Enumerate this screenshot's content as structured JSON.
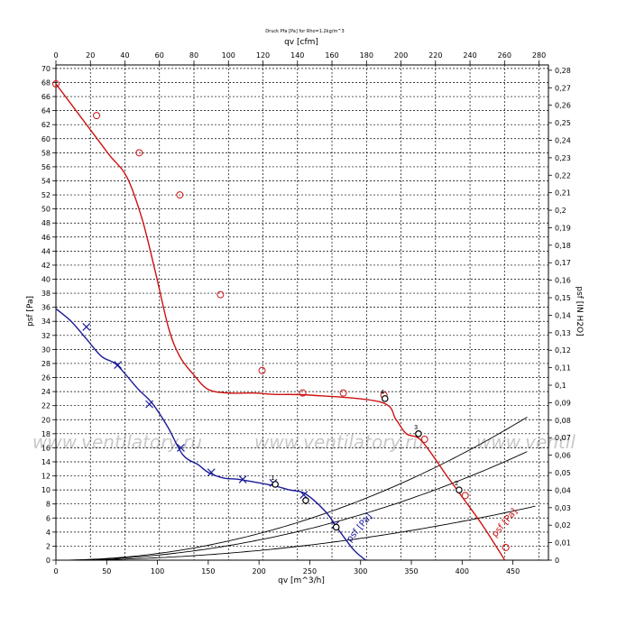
{
  "header": {
    "title": "Druck Pfa [Pa] for Rho=1.2kg/m^3"
  },
  "watermark": [
    "www.ventilatory.ru",
    "www.ventilatory.ru",
    "www.ventil"
  ],
  "chart_data": {
    "type": "line",
    "xlabel_bottom": "qv [m^3/h]",
    "xlabel_top": "qv [cfm]",
    "ylabel_left": "psf [Pa]",
    "ylabel_right": "psf [IN H2O]",
    "xlim": [
      0,
      485
    ],
    "ylim": [
      0,
      70.5
    ],
    "x_top_ticks": [
      "0",
      "20",
      "40",
      "60",
      "80",
      "100",
      "120",
      "140",
      "160",
      "180",
      "200",
      "220",
      "240",
      "260",
      "280"
    ],
    "x_bottom_ticks": [
      "0",
      "50",
      "100",
      "150",
      "200",
      "250",
      "300",
      "350",
      "400",
      "450"
    ],
    "y_left_ticks": [
      "0",
      "2",
      "4",
      "6",
      "8",
      "10",
      "12",
      "14",
      "16",
      "18",
      "20",
      "22",
      "24",
      "26",
      "28",
      "30",
      "32",
      "34",
      "36",
      "38",
      "40",
      "42",
      "44",
      "46",
      "48",
      "50",
      "52",
      "54",
      "56",
      "58",
      "60",
      "62",
      "64",
      "66",
      "68",
      "70"
    ],
    "y_right_ticks": [
      "0",
      "0,01",
      "0,02",
      "0,03",
      "0,04",
      "0,05",
      "0,06",
      "0,07",
      "0,08",
      "0,09",
      "0,1",
      "0,11",
      "0,12",
      "0,13",
      "0,14",
      "0,15",
      "0,16",
      "0,17",
      "0,18",
      "0,19",
      "0,2",
      "0,21",
      "0,22",
      "0,23",
      "0,24",
      "0,25",
      "0,26",
      "0,27",
      "0,28"
    ],
    "grid": true,
    "series": [
      {
        "name": "psf [Pa]",
        "color": "#cc1111",
        "marker": "circle",
        "points": [
          [
            0,
            67.8
          ],
          [
            25,
            63
          ],
          [
            52,
            57.8
          ],
          [
            70,
            54.5
          ],
          [
            85,
            48.5
          ],
          [
            98,
            41
          ],
          [
            111,
            33
          ],
          [
            122,
            29
          ],
          [
            135,
            26.5
          ],
          [
            150,
            24.3
          ],
          [
            170,
            23.8
          ],
          [
            195,
            23.8
          ],
          [
            215,
            23.6
          ],
          [
            250,
            23.5
          ],
          [
            320,
            22.5
          ],
          [
            335,
            20
          ],
          [
            345,
            18
          ],
          [
            360,
            17
          ],
          [
            385,
            12
          ],
          [
            400,
            9
          ],
          [
            420,
            5
          ],
          [
            442,
            0
          ]
        ],
        "markers": [
          [
            0,
            67.8
          ],
          [
            40,
            63.3
          ],
          [
            82,
            58
          ],
          [
            122,
            52
          ],
          [
            162,
            37.8
          ],
          [
            203,
            27
          ],
          [
            243,
            23.8
          ],
          [
            283,
            23.8
          ],
          [
            323,
            23.5
          ],
          [
            363,
            17.2
          ],
          [
            403,
            9.2
          ],
          [
            443,
            1.8
          ]
        ],
        "label_pos": [
          433,
          3.2
        ]
      },
      {
        "name": "psf [Pa]",
        "color": "#1a1a99",
        "marker": "x",
        "points": [
          [
            0,
            35.8
          ],
          [
            15,
            34
          ],
          [
            30,
            31.5
          ],
          [
            45,
            29
          ],
          [
            60,
            27.8
          ],
          [
            80,
            24.5
          ],
          [
            95,
            22.3
          ],
          [
            110,
            19
          ],
          [
            125,
            15
          ],
          [
            140,
            13.6
          ],
          [
            150,
            12.5
          ],
          [
            165,
            11.7
          ],
          [
            180,
            11.5
          ],
          [
            200,
            11
          ],
          [
            215,
            10.6
          ],
          [
            230,
            10
          ],
          [
            245,
            9.5
          ],
          [
            265,
            7
          ],
          [
            280,
            4
          ],
          [
            293,
            1.5
          ],
          [
            305,
            0
          ]
        ],
        "markers": [
          [
            30,
            33.2
          ],
          [
            61,
            27.8
          ],
          [
            92,
            22.2
          ],
          [
            123,
            16
          ],
          [
            153,
            12.5
          ],
          [
            184,
            11.5
          ],
          [
            214,
            11
          ],
          [
            244,
            9.3
          ],
          [
            275,
            5
          ]
        ],
        "label_pos": [
          290,
          2.5
        ]
      }
    ],
    "system_curves": [
      {
        "k": 9.46e-05,
        "x_end": 466
      },
      {
        "k": 7.18e-05,
        "x_end": 466
      },
      {
        "k": 3.45e-05,
        "x_end": 472
      }
    ],
    "operating_points": [
      {
        "x": 324,
        "y": 23.0,
        "label": "4"
      },
      {
        "x": 246,
        "y": 8.5,
        "label": ""
      },
      {
        "x": 276,
        "y": 4.7,
        "label": ""
      },
      {
        "x": 357,
        "y": 18.0,
        "label": "3"
      },
      {
        "x": 397,
        "y": 10.0,
        "label": "2"
      },
      {
        "x": 216,
        "y": 10.8,
        "label": "1"
      }
    ]
  }
}
